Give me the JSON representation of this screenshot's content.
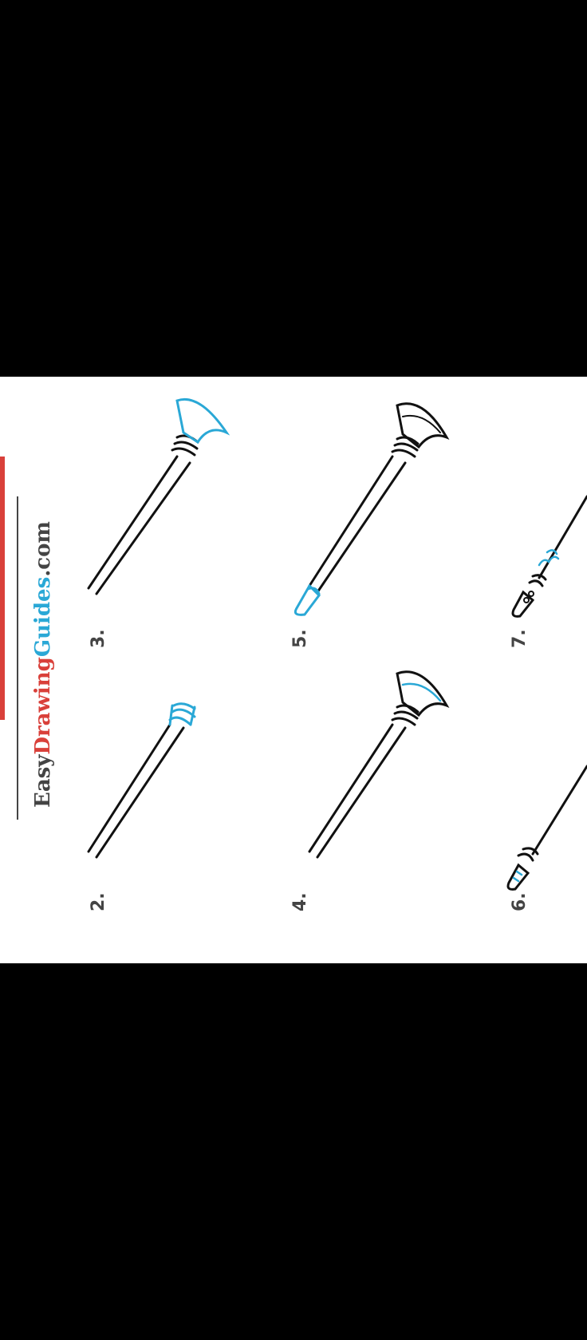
{
  "brand": {
    "part1": "Easy",
    "part2": "Drawing",
    "part3": "Guides",
    "part4": ".com",
    "colors": {
      "dark": "#444444",
      "red": "#d9403a",
      "blue": "#2aa8d6"
    }
  },
  "steps": [
    {
      "label": "2."
    },
    {
      "label": "3."
    },
    {
      "label": "4."
    },
    {
      "label": "5."
    },
    {
      "label": "6."
    },
    {
      "label": "7."
    }
  ],
  "colors": {
    "stroke": "#111111",
    "highlight": "#2aa8d6",
    "title_red": "#d9403a"
  }
}
